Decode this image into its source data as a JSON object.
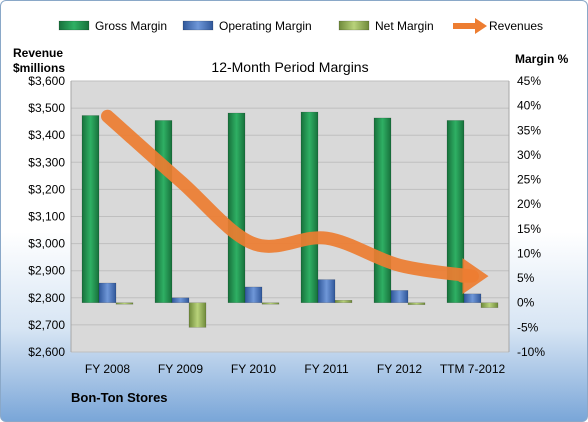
{
  "chart_data": {
    "type": "bar",
    "title": "12-Month Period Margins",
    "company": "Bon-Ton Stores",
    "categories": [
      "FY 2008",
      "FY 2009",
      "FY 2010",
      "FY 2011",
      "FY 2012",
      "TTM 7-2012"
    ],
    "series": [
      {
        "name": "Gross Margin",
        "values": [
          38,
          37,
          38.5,
          38.7,
          37.5,
          37
        ],
        "color": "#1f8b4c"
      },
      {
        "name": "Operating Margin",
        "values": [
          4,
          1,
          3.2,
          4.7,
          2.5,
          1.8
        ],
        "color": "#4472c4"
      },
      {
        "name": "Net Margin",
        "values": [
          -0.3,
          -5,
          -0.2,
          0.5,
          -0.4,
          -1
        ],
        "color": "#9bbb59"
      }
    ],
    "revenue_series": {
      "name": "Revenues",
      "values": [
        3470,
        3230,
        3000,
        3020,
        2920,
        2880
      ],
      "color": "#ed7d31"
    },
    "legend": [
      "Gross Margin",
      "Operating Margin",
      "Net Margin",
      "Revenues"
    ],
    "left_axis": {
      "title_line1": "Revenue",
      "title_line2": "$millions",
      "min": 2600,
      "max": 3600,
      "step": 100,
      "ticks": [
        "$2,600",
        "$2,700",
        "$2,800",
        "$2,900",
        "$3,000",
        "$3,100",
        "$3,200",
        "$3,300",
        "$3,400",
        "$3,500",
        "$3,600"
      ]
    },
    "right_axis": {
      "title": "Margin %",
      "min": -10,
      "max": 45,
      "step": 5,
      "ticks": [
        "-10%",
        "-5%",
        "0%",
        "5%",
        "10%",
        "15%",
        "20%",
        "25%",
        "30%",
        "35%",
        "40%",
        "45%"
      ]
    },
    "plot_background": "#d9d9d9"
  }
}
